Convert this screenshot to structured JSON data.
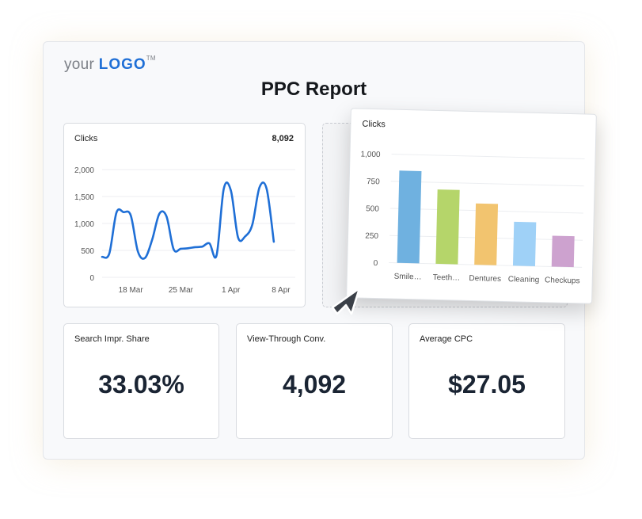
{
  "logo": {
    "prefix": "your",
    "word": "LOGO",
    "tm": "TM"
  },
  "report": {
    "title": "PPC Report"
  },
  "line_card": {
    "title": "Clicks",
    "total": "8,092"
  },
  "bar_card": {
    "title": "Clicks"
  },
  "kpis": [
    {
      "label": "Search Impr. Share",
      "value": "33.03%"
    },
    {
      "label": "View-Through Conv.",
      "value": "4,092"
    },
    {
      "label": "Average CPC",
      "value": "$27.05"
    }
  ],
  "colors": {
    "accent": "#1f6fd6",
    "line": "#1f6fd6"
  },
  "icons": {
    "pointer": "cursor-arrow-icon"
  },
  "chart_data": [
    {
      "type": "line",
      "title": "Clicks",
      "ylim": [
        0,
        2000
      ],
      "y_ticks": [
        0,
        500,
        1000,
        1500,
        2000
      ],
      "y_tick_labels": [
        "0",
        "500",
        "1,000",
        "1,500",
        "2,000"
      ],
      "x_tick_labels": [
        "18 Mar",
        "25 Mar",
        "1 Apr",
        "8 Apr"
      ],
      "x_tick_positions": [
        4,
        11,
        18,
        25
      ],
      "x_range": [
        0,
        27
      ],
      "grid": true,
      "series": [
        {
          "points": [
            [
              0,
              380
            ],
            [
              1,
              440
            ],
            [
              2,
              1200
            ],
            [
              3,
              1210
            ],
            [
              4,
              1150
            ],
            [
              5,
              480
            ],
            [
              6,
              360
            ],
            [
              7,
              700
            ],
            [
              8,
              1180
            ],
            [
              9,
              1130
            ],
            [
              10,
              520
            ],
            [
              11,
              530
            ],
            [
              12,
              540
            ],
            [
              13,
              560
            ],
            [
              14,
              570
            ],
            [
              15,
              630
            ],
            [
              16,
              410
            ],
            [
              17,
              1640
            ],
            [
              18,
              1610
            ],
            [
              19,
              740
            ],
            [
              20,
              760
            ],
            [
              21,
              980
            ],
            [
              22,
              1670
            ],
            [
              23,
              1640
            ],
            [
              24,
              660
            ]
          ]
        }
      ]
    },
    {
      "type": "bar",
      "title": "Clicks",
      "categories": [
        "Smile…",
        "Teeth…",
        "Dentures",
        "Cleaning",
        "Checkups"
      ],
      "values": [
        850,
        685,
        565,
        405,
        285
      ],
      "colors": [
        "#6fb1e0",
        "#b5d56a",
        "#f2c46f",
        "#9fd1f7",
        "#cda2cf"
      ],
      "ylim": [
        0,
        1000
      ],
      "y_ticks": [
        0,
        250,
        500,
        750,
        1000
      ],
      "y_tick_labels": [
        "0",
        "250",
        "500",
        "750",
        "1,000"
      ],
      "grid": true
    }
  ]
}
